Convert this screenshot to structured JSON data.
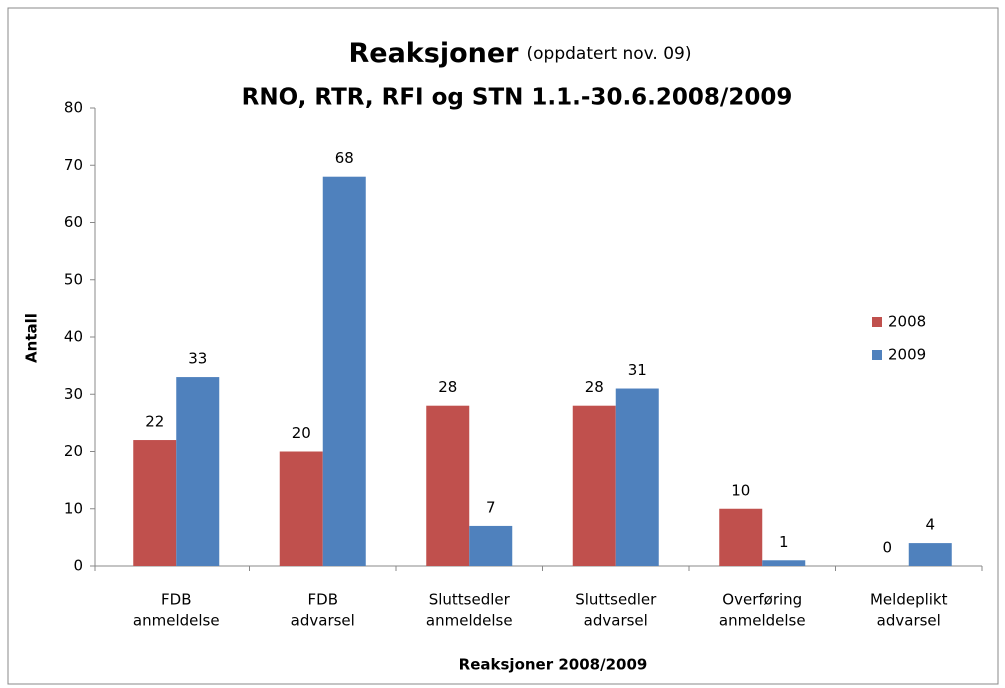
{
  "chart_data": {
    "type": "bar",
    "title": "Reaksjoner",
    "title_note": "(oppdatert nov. 09)",
    "subtitle": "RNO, RTR, RFI og STN 1.1.-30.6.2008/2009",
    "categories": [
      [
        "FDB",
        "anmeldelse"
      ],
      [
        "FDB",
        "advarsel"
      ],
      [
        "Sluttsedler",
        "anmeldelse"
      ],
      [
        "Sluttsedler",
        "advarsel"
      ],
      [
        "Overføring",
        "anmeldelse"
      ],
      [
        "Meldeplikt",
        "advarsel"
      ]
    ],
    "series": [
      {
        "name": "2008",
        "color": "#c0504d",
        "values": [
          22,
          20,
          28,
          28,
          10,
          0
        ]
      },
      {
        "name": "2009",
        "color": "#4f81bd",
        "values": [
          33,
          68,
          7,
          31,
          1,
          4
        ]
      }
    ],
    "ylim": [
      0,
      80
    ],
    "yticks": [
      0,
      10,
      20,
      30,
      40,
      50,
      60,
      70,
      80
    ],
    "xlabel": "Reaksjoner 2008/2009",
    "ylabel": "Antall",
    "grid": false,
    "legend": "right"
  }
}
